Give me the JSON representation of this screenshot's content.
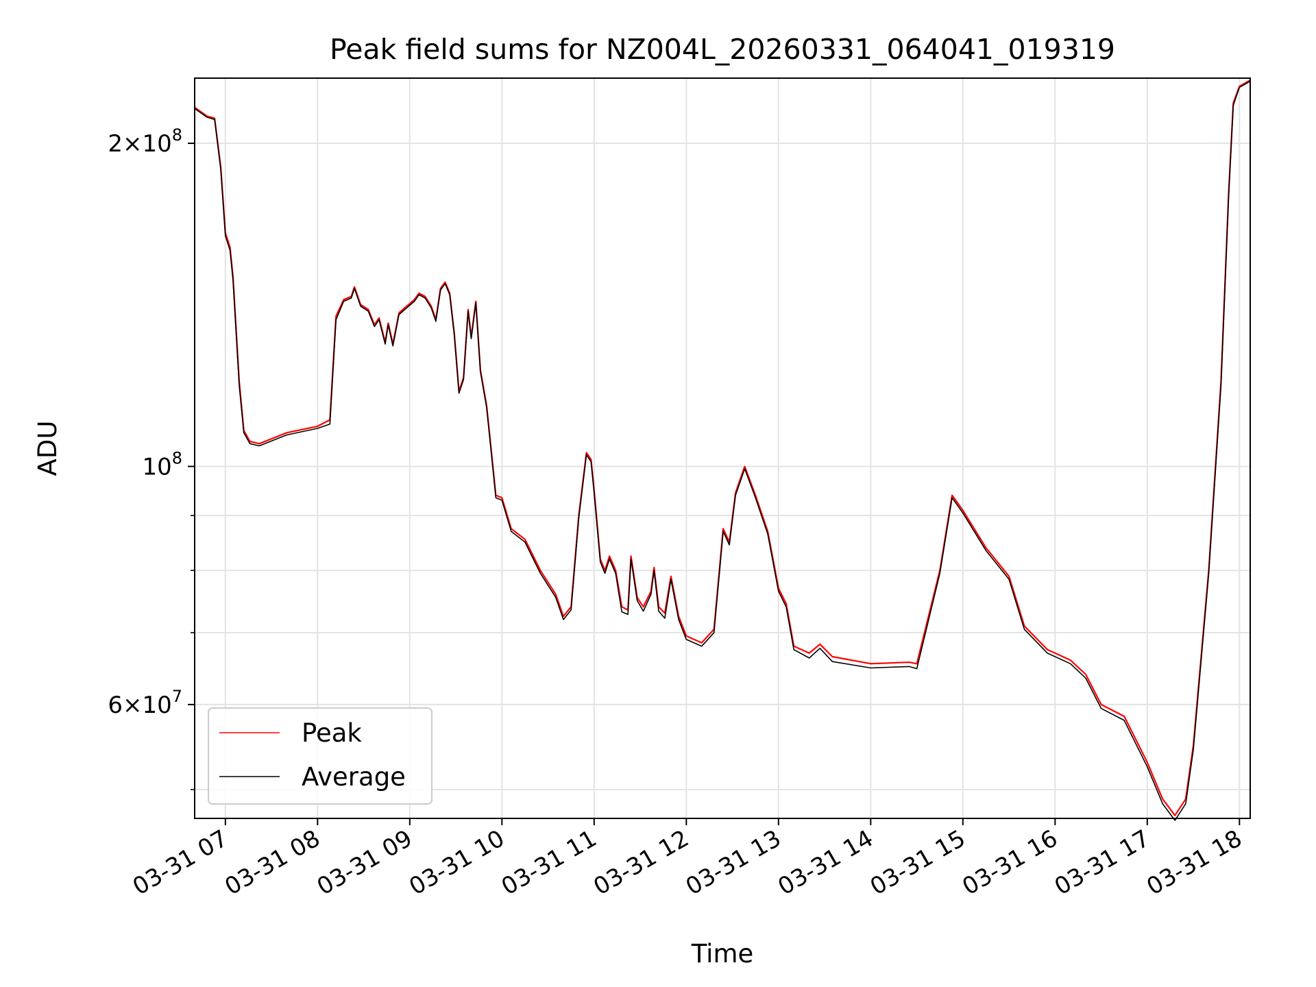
{
  "chart_data": {
    "type": "line",
    "title": "Peak field sums for NZ004L_20260331_064041_019319",
    "xlabel": "Time",
    "ylabel": "ADU",
    "yscale": "log",
    "xlim": [
      "2026-03-31 06:40",
      "2026-03-31 18:07"
    ],
    "ylim": [
      47000000,
      230000000
    ],
    "grid": true,
    "legend_position": "bottom-left",
    "x_tick_labels": [
      {
        "t": "2026-03-31 07:00",
        "label": "03-31 07"
      },
      {
        "t": "2026-03-31 08:00",
        "label": "03-31 08"
      },
      {
        "t": "2026-03-31 09:00",
        "label": "03-31 09"
      },
      {
        "t": "2026-03-31 10:00",
        "label": "03-31 10"
      },
      {
        "t": "2026-03-31 11:00",
        "label": "03-31 11"
      },
      {
        "t": "2026-03-31 12:00",
        "label": "03-31 12"
      },
      {
        "t": "2026-03-31 13:00",
        "label": "03-31 13"
      },
      {
        "t": "2026-03-31 14:00",
        "label": "03-31 14"
      },
      {
        "t": "2026-03-31 15:00",
        "label": "03-31 15"
      },
      {
        "t": "2026-03-31 16:00",
        "label": "03-31 16"
      },
      {
        "t": "2026-03-31 17:00",
        "label": "03-31 17"
      },
      {
        "t": "2026-03-31 18:00",
        "label": "03-31 18"
      }
    ],
    "y_tick_labels": [
      {
        "value": 200000000,
        "mantissa": "2",
        "exponent": "8"
      },
      {
        "value": 100000000,
        "mantissa": "",
        "exponent": "8"
      },
      {
        "value": 60000000,
        "mantissa": "6",
        "exponent": "7"
      }
    ],
    "y_minor_ticks": [
      50000000,
      60000000,
      70000000,
      80000000,
      90000000,
      100000000,
      200000000
    ],
    "series": [
      {
        "name": "Peak",
        "color": "#ff0000",
        "points": [
          [
            "2026-03-31 06:40",
            216000000
          ],
          [
            "2026-03-31 06:48",
            212000000
          ],
          [
            "2026-03-31 06:53",
            211000000
          ],
          [
            "2026-03-31 06:57",
            190000000
          ],
          [
            "2026-03-31 07:00",
            165000000
          ],
          [
            "2026-03-31 07:03",
            160000000
          ],
          [
            "2026-03-31 07:05",
            150000000
          ],
          [
            "2026-03-31 07:09",
            120000000
          ],
          [
            "2026-03-31 07:12",
            108000000
          ],
          [
            "2026-03-31 07:16",
            105500000
          ],
          [
            "2026-03-31 07:22",
            105000000
          ],
          [
            "2026-03-31 07:40",
            107500000
          ],
          [
            "2026-03-31 08:00",
            109000000
          ],
          [
            "2026-03-31 08:08",
            110500000
          ],
          [
            "2026-03-31 08:12",
            138000000
          ],
          [
            "2026-03-31 08:17",
            143000000
          ],
          [
            "2026-03-31 08:22",
            144000000
          ],
          [
            "2026-03-31 08:24",
            147000000
          ],
          [
            "2026-03-31 08:28",
            141500000
          ],
          [
            "2026-03-31 08:33",
            140000000
          ],
          [
            "2026-03-31 08:37",
            135500000
          ],
          [
            "2026-03-31 08:40",
            137500000
          ],
          [
            "2026-03-31 08:44",
            130500000
          ],
          [
            "2026-03-31 08:46",
            136000000
          ],
          [
            "2026-03-31 08:49",
            130000000
          ],
          [
            "2026-03-31 08:53",
            139000000
          ],
          [
            "2026-03-31 08:58",
            141000000
          ],
          [
            "2026-03-31 09:03",
            143000000
          ],
          [
            "2026-03-31 09:06",
            145000000
          ],
          [
            "2026-03-31 09:10",
            144000000
          ],
          [
            "2026-03-31 09:14",
            141000000
          ],
          [
            "2026-03-31 09:17",
            137000000
          ],
          [
            "2026-03-31 09:20",
            146500000
          ],
          [
            "2026-03-31 09:23",
            148500000
          ],
          [
            "2026-03-31 09:26",
            145000000
          ],
          [
            "2026-03-31 09:29",
            133000000
          ],
          [
            "2026-03-31 09:32",
            117500000
          ],
          [
            "2026-03-31 09:35",
            121000000
          ],
          [
            "2026-03-31 09:38",
            140000000
          ],
          [
            "2026-03-31 09:40",
            132000000
          ],
          [
            "2026-03-31 09:43",
            142500000
          ],
          [
            "2026-03-31 09:46",
            123000000
          ],
          [
            "2026-03-31 09:50",
            114000000
          ],
          [
            "2026-03-31 09:52",
            107000000
          ],
          [
            "2026-03-31 09:56",
            94000000
          ],
          [
            "2026-03-31 10:00",
            93500000
          ],
          [
            "2026-03-31 10:06",
            87500000
          ],
          [
            "2026-03-31 10:15",
            85500000
          ],
          [
            "2026-03-31 10:25",
            80000000
          ],
          [
            "2026-03-31 10:35",
            76000000
          ],
          [
            "2026-03-31 10:40",
            72500000
          ],
          [
            "2026-03-31 10:45",
            74000000
          ],
          [
            "2026-03-31 10:50",
            90000000
          ],
          [
            "2026-03-31 10:55",
            103000000
          ],
          [
            "2026-03-31 10:58",
            101500000
          ],
          [
            "2026-03-31 11:00",
            95000000
          ],
          [
            "2026-03-31 11:04",
            82000000
          ],
          [
            "2026-03-31 11:07",
            80000000
          ],
          [
            "2026-03-31 11:10",
            82500000
          ],
          [
            "2026-03-31 11:14",
            80000000
          ],
          [
            "2026-03-31 11:18",
            74000000
          ],
          [
            "2026-03-31 11:22",
            73500000
          ],
          [
            "2026-03-31 11:24",
            82500000
          ],
          [
            "2026-03-31 11:28",
            75500000
          ],
          [
            "2026-03-31 11:32",
            74000000
          ],
          [
            "2026-03-31 11:37",
            76500000
          ],
          [
            "2026-03-31 11:39",
            80500000
          ],
          [
            "2026-03-31 11:42",
            74000000
          ],
          [
            "2026-03-31 11:46",
            73000000
          ],
          [
            "2026-03-31 11:50",
            79000000
          ],
          [
            "2026-03-31 11:55",
            72500000
          ],
          [
            "2026-03-31 12:00",
            69500000
          ],
          [
            "2026-03-31 12:10",
            68500000
          ],
          [
            "2026-03-31 12:18",
            70500000
          ],
          [
            "2026-03-31 12:24",
            87500000
          ],
          [
            "2026-03-31 12:28",
            85000000
          ],
          [
            "2026-03-31 12:32",
            94500000
          ],
          [
            "2026-03-31 12:38",
            100000000
          ],
          [
            "2026-03-31 12:45",
            94000000
          ],
          [
            "2026-03-31 12:53",
            87000000
          ],
          [
            "2026-03-31 13:00",
            77000000
          ],
          [
            "2026-03-31 13:05",
            74500000
          ],
          [
            "2026-03-31 13:10",
            68000000
          ],
          [
            "2026-03-31 13:20",
            67000000
          ],
          [
            "2026-03-31 13:27",
            68300000
          ],
          [
            "2026-03-31 13:35",
            66500000
          ],
          [
            "2026-03-31 14:00",
            65500000
          ],
          [
            "2026-03-31 14:25",
            65700000
          ],
          [
            "2026-03-31 14:30",
            65500000
          ],
          [
            "2026-03-31 14:45",
            80000000
          ],
          [
            "2026-03-31 14:53",
            94000000
          ],
          [
            "2026-03-31 15:00",
            91000000
          ],
          [
            "2026-03-31 15:15",
            84000000
          ],
          [
            "2026-03-31 15:30",
            79000000
          ],
          [
            "2026-03-31 15:40",
            71000000
          ],
          [
            "2026-03-31 15:55",
            67500000
          ],
          [
            "2026-03-31 16:10",
            66000000
          ],
          [
            "2026-03-31 16:20",
            64000000
          ],
          [
            "2026-03-31 16:30",
            60000000
          ],
          [
            "2026-03-31 16:45",
            58500000
          ],
          [
            "2026-03-31 17:00",
            53000000
          ],
          [
            "2026-03-31 17:10",
            49000000
          ],
          [
            "2026-03-31 17:18",
            47300000
          ],
          [
            "2026-03-31 17:25",
            49000000
          ],
          [
            "2026-03-31 17:30",
            55000000
          ],
          [
            "2026-03-31 17:40",
            80000000
          ],
          [
            "2026-03-31 17:48",
            120000000
          ],
          [
            "2026-03-31 17:53",
            180000000
          ],
          [
            "2026-03-31 17:56",
            218000000
          ],
          [
            "2026-03-31 18:00",
            226000000
          ],
          [
            "2026-03-31 18:07",
            229000000
          ]
        ]
      },
      {
        "name": "Average",
        "color": "#000000",
        "points": [
          [
            "2026-03-31 06:40",
            215500000
          ],
          [
            "2026-03-31 06:48",
            211500000
          ],
          [
            "2026-03-31 06:53",
            210500000
          ],
          [
            "2026-03-31 06:57",
            189000000
          ],
          [
            "2026-03-31 07:00",
            164000000
          ],
          [
            "2026-03-31 07:03",
            159000000
          ],
          [
            "2026-03-31 07:05",
            149000000
          ],
          [
            "2026-03-31 07:09",
            119000000
          ],
          [
            "2026-03-31 07:12",
            107500000
          ],
          [
            "2026-03-31 07:16",
            105000000
          ],
          [
            "2026-03-31 07:22",
            104500000
          ],
          [
            "2026-03-31 07:40",
            107000000
          ],
          [
            "2026-03-31 08:00",
            108500000
          ],
          [
            "2026-03-31 08:08",
            109500000
          ],
          [
            "2026-03-31 08:12",
            137000000
          ],
          [
            "2026-03-31 08:17",
            142500000
          ],
          [
            "2026-03-31 08:22",
            143500000
          ],
          [
            "2026-03-31 08:24",
            146500000
          ],
          [
            "2026-03-31 08:28",
            141000000
          ],
          [
            "2026-03-31 08:33",
            139500000
          ],
          [
            "2026-03-31 08:37",
            135000000
          ],
          [
            "2026-03-31 08:40",
            137000000
          ],
          [
            "2026-03-31 08:44",
            130000000
          ],
          [
            "2026-03-31 08:46",
            135500000
          ],
          [
            "2026-03-31 08:49",
            129500000
          ],
          [
            "2026-03-31 08:53",
            138500000
          ],
          [
            "2026-03-31 08:58",
            140500000
          ],
          [
            "2026-03-31 09:03",
            142500000
          ],
          [
            "2026-03-31 09:06",
            144500000
          ],
          [
            "2026-03-31 09:10",
            143500000
          ],
          [
            "2026-03-31 09:14",
            140500000
          ],
          [
            "2026-03-31 09:17",
            136500000
          ],
          [
            "2026-03-31 09:20",
            146000000
          ],
          [
            "2026-03-31 09:23",
            148000000
          ],
          [
            "2026-03-31 09:26",
            144500000
          ],
          [
            "2026-03-31 09:29",
            132500000
          ],
          [
            "2026-03-31 09:32",
            117000000
          ],
          [
            "2026-03-31 09:35",
            120500000
          ],
          [
            "2026-03-31 09:38",
            139500000
          ],
          [
            "2026-03-31 09:40",
            131500000
          ],
          [
            "2026-03-31 09:43",
            142000000
          ],
          [
            "2026-03-31 09:46",
            122500000
          ],
          [
            "2026-03-31 09:50",
            113500000
          ],
          [
            "2026-03-31 09:52",
            106500000
          ],
          [
            "2026-03-31 09:56",
            93500000
          ],
          [
            "2026-03-31 10:00",
            93000000
          ],
          [
            "2026-03-31 10:06",
            87000000
          ],
          [
            "2026-03-31 10:15",
            85000000
          ],
          [
            "2026-03-31 10:25",
            79500000
          ],
          [
            "2026-03-31 10:35",
            75500000
          ],
          [
            "2026-03-31 10:40",
            72000000
          ],
          [
            "2026-03-31 10:45",
            73500000
          ],
          [
            "2026-03-31 10:50",
            89500000
          ],
          [
            "2026-03-31 10:55",
            102500000
          ],
          [
            "2026-03-31 10:58",
            101000000
          ],
          [
            "2026-03-31 11:00",
            94500000
          ],
          [
            "2026-03-31 11:04",
            81500000
          ],
          [
            "2026-03-31 11:07",
            79500000
          ],
          [
            "2026-03-31 11:10",
            82000000
          ],
          [
            "2026-03-31 11:14",
            79500000
          ],
          [
            "2026-03-31 11:18",
            73200000
          ],
          [
            "2026-03-31 11:22",
            72800000
          ],
          [
            "2026-03-31 11:24",
            82000000
          ],
          [
            "2026-03-31 11:28",
            75000000
          ],
          [
            "2026-03-31 11:32",
            73300000
          ],
          [
            "2026-03-31 11:37",
            76000000
          ],
          [
            "2026-03-31 11:39",
            80000000
          ],
          [
            "2026-03-31 11:42",
            73300000
          ],
          [
            "2026-03-31 11:46",
            72200000
          ],
          [
            "2026-03-31 11:50",
            78500000
          ],
          [
            "2026-03-31 11:55",
            72000000
          ],
          [
            "2026-03-31 12:00",
            69000000
          ],
          [
            "2026-03-31 12:10",
            68000000
          ],
          [
            "2026-03-31 12:18",
            70000000
          ],
          [
            "2026-03-31 12:24",
            87000000
          ],
          [
            "2026-03-31 12:28",
            84500000
          ],
          [
            "2026-03-31 12:32",
            94000000
          ],
          [
            "2026-03-31 12:38",
            99500000
          ],
          [
            "2026-03-31 12:45",
            93500000
          ],
          [
            "2026-03-31 12:53",
            86500000
          ],
          [
            "2026-03-31 13:00",
            76500000
          ],
          [
            "2026-03-31 13:05",
            74000000
          ],
          [
            "2026-03-31 13:10",
            67500000
          ],
          [
            "2026-03-31 13:20",
            66300000
          ],
          [
            "2026-03-31 13:27",
            67700000
          ],
          [
            "2026-03-31 13:35",
            65800000
          ],
          [
            "2026-03-31 14:00",
            64900000
          ],
          [
            "2026-03-31 14:25",
            65100000
          ],
          [
            "2026-03-31 14:30",
            64800000
          ],
          [
            "2026-03-31 14:45",
            79500000
          ],
          [
            "2026-03-31 14:53",
            93500000
          ],
          [
            "2026-03-31 15:00",
            90500000
          ],
          [
            "2026-03-31 15:15",
            83500000
          ],
          [
            "2026-03-31 15:30",
            78500000
          ],
          [
            "2026-03-31 15:40",
            70500000
          ],
          [
            "2026-03-31 15:55",
            67000000
          ],
          [
            "2026-03-31 16:10",
            65500000
          ],
          [
            "2026-03-31 16:20",
            63500000
          ],
          [
            "2026-03-31 16:30",
            59500000
          ],
          [
            "2026-03-31 16:45",
            58000000
          ],
          [
            "2026-03-31 17:00",
            52500000
          ],
          [
            "2026-03-31 17:10",
            48500000
          ],
          [
            "2026-03-31 17:18",
            46800000
          ],
          [
            "2026-03-31 17:25",
            48500000
          ],
          [
            "2026-03-31 17:30",
            54500000
          ],
          [
            "2026-03-31 17:40",
            79500000
          ],
          [
            "2026-03-31 17:48",
            119000000
          ],
          [
            "2026-03-31 17:53",
            179000000
          ],
          [
            "2026-03-31 17:56",
            217000000
          ],
          [
            "2026-03-31 18:00",
            225500000
          ],
          [
            "2026-03-31 18:07",
            228500000
          ]
        ]
      }
    ]
  }
}
